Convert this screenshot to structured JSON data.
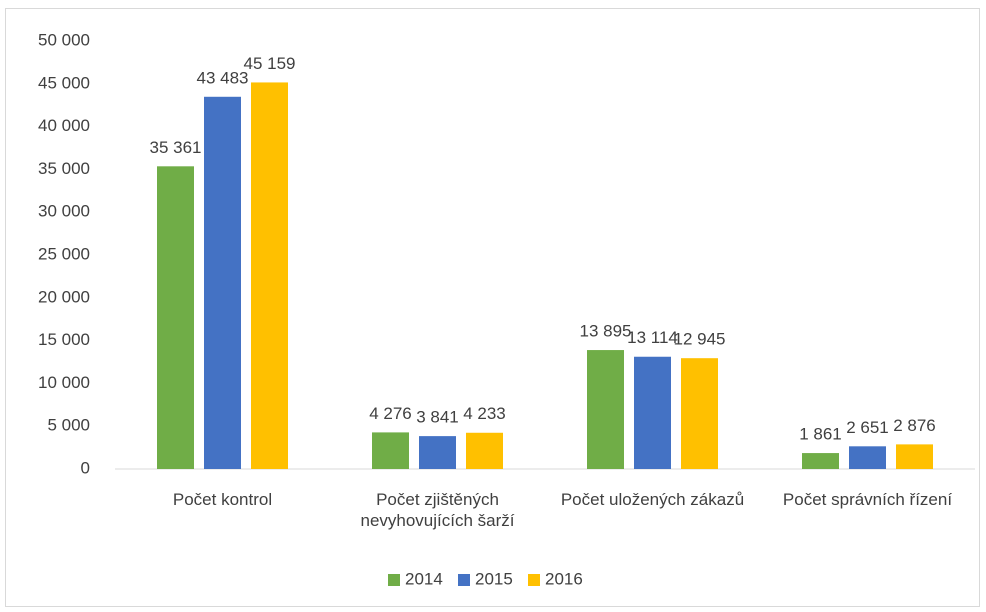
{
  "chart_data": {
    "type": "bar",
    "categories": [
      "Počet kontrol",
      "Počet zjištěných nevyhovujících šarží",
      "Počet uložených zákazů",
      "Počet správních řízení"
    ],
    "series": [
      {
        "name": "2014",
        "color": "#70ad47",
        "values": [
          35361,
          4276,
          13895,
          1861
        ],
        "value_labels": [
          "35 361",
          "4 276",
          "13 895",
          "1 861"
        ]
      },
      {
        "name": "2015",
        "color": "#4472c4",
        "values": [
          43483,
          3841,
          13114,
          2651
        ],
        "value_labels": [
          "43 483",
          "3 841",
          "13 114",
          "2 651"
        ]
      },
      {
        "name": "2016",
        "color": "#ffc000",
        "values": [
          45159,
          4233,
          12945,
          2876
        ],
        "value_labels": [
          "45 159",
          "4 233",
          "12 945",
          "2 876"
        ]
      }
    ],
    "ylim": [
      0,
      50000
    ],
    "yticks": [
      0,
      {
        "value": 5000,
        "label": "5 000"
      },
      {
        "value": 10000,
        "label": "10 000"
      },
      {
        "value": 15000,
        "label": "15 000"
      },
      {
        "value": 20000,
        "label": "20 000"
      },
      {
        "value": 25000,
        "label": "25 000"
      },
      {
        "value": 30000,
        "label": "30 000"
      },
      {
        "value": 35000,
        "label": "35 000"
      },
      {
        "value": 40000,
        "label": "40 000"
      },
      {
        "value": 45000,
        "label": "45 000"
      },
      {
        "value": 50000,
        "label": "50 000"
      }
    ],
    "legend": "bottom"
  }
}
